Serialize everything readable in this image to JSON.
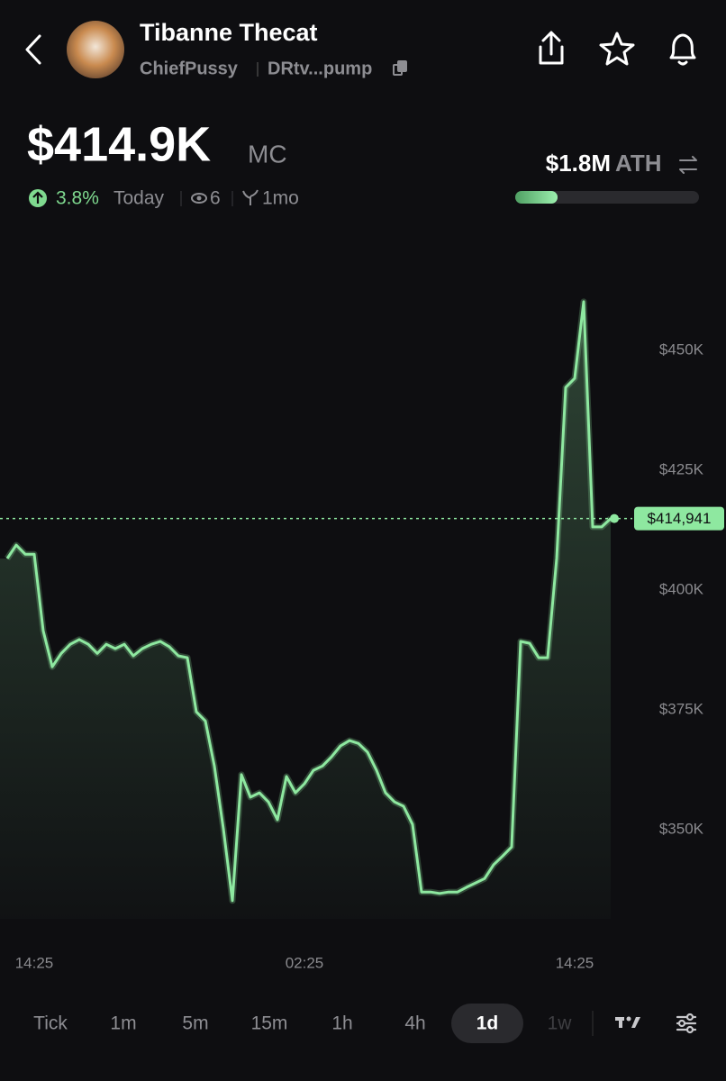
{
  "header": {
    "name": "Tibanne Thecat",
    "handle": "ChiefPussy",
    "address": "DRtv...pump"
  },
  "stats": {
    "market_cap": {
      "value": 414900,
      "label": "$414.9K"
    },
    "market_cap_unit": "MC",
    "change": "3.8%",
    "change_period": "Today",
    "holders": "6",
    "age": "1mo",
    "ath": {
      "value": 1800000,
      "label": "$1.8M"
    },
    "ath_label": "ATH"
  },
  "chart_data": {
    "type": "line",
    "color": "#8ee8a0",
    "categories": [
      null,
      null,
      null,
      "14:25",
      null,
      null,
      null,
      null,
      null,
      null,
      null,
      null,
      null,
      null,
      null,
      null,
      null,
      null,
      null,
      null,
      null,
      null,
      null,
      null,
      null,
      null,
      null,
      null,
      null,
      null,
      null,
      null,
      null,
      "02:25",
      null,
      null,
      null,
      null,
      null,
      null,
      null,
      null,
      null,
      null,
      null,
      null,
      null,
      null,
      null,
      null,
      null,
      null,
      null,
      null,
      null,
      null,
      null,
      null,
      null,
      null,
      null,
      null,
      null,
      "14:25",
      null,
      null,
      null,
      null
    ],
    "values": [
      406600,
      409400,
      407500,
      407500,
      391500,
      384000,
      386800,
      388700,
      389700,
      388700,
      386800,
      388700,
      387800,
      388700,
      386300,
      387800,
      388700,
      389300,
      388200,
      386300,
      385900,
      374600,
      372700,
      363300,
      350200,
      335200,
      361500,
      356800,
      357700,
      355800,
      352100,
      361100,
      357700,
      359600,
      362400,
      363300,
      365200,
      367500,
      368600,
      368000,
      366200,
      362400,
      357700,
      355800,
      354900,
      351100,
      337000,
      337000,
      336700,
      337000,
      337000,
      338000,
      338900,
      339800,
      342700,
      344500,
      346400,
      389300,
      388900,
      385900,
      385900,
      406600,
      442300,
      444200,
      460200,
      413200,
      413200,
      414941
    ],
    "ylim": [
      331400,
      472400
    ],
    "yticks": [
      {
        "value": 350000,
        "label": "$350K"
      },
      {
        "value": 375000,
        "label": "$375K"
      },
      {
        "value": 400000,
        "label": "$400K"
      },
      {
        "value": 425000,
        "label": "$425K"
      },
      {
        "value": 450000,
        "label": "$450K"
      }
    ],
    "price_marker": {
      "value": 414941,
      "label": "$414,941"
    }
  },
  "timeframes": [
    "Tick",
    "1m",
    "5m",
    "15m",
    "1h",
    "4h",
    "1d",
    "1w"
  ],
  "selected_timeframe": "1d"
}
